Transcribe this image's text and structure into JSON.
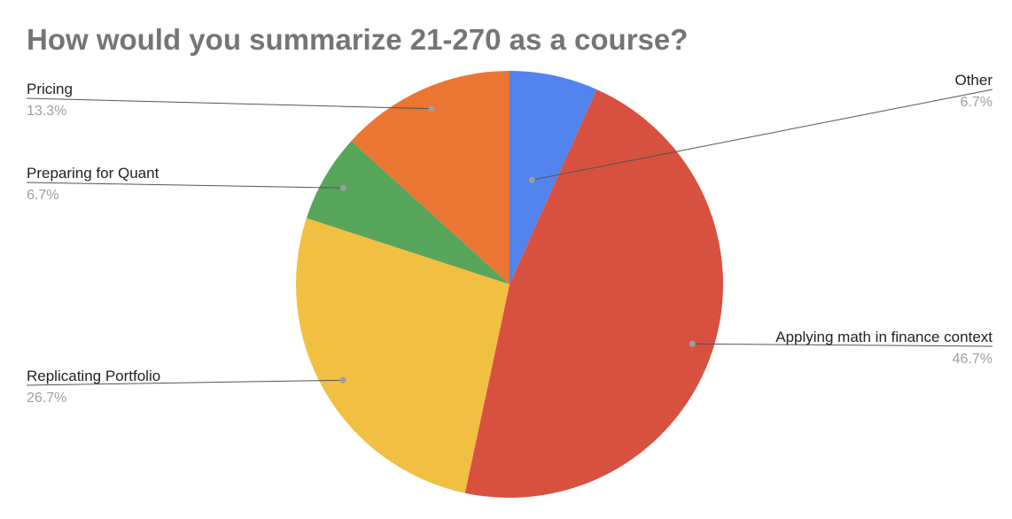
{
  "chart_data": {
    "type": "pie",
    "title": "How would you summarize 21-270 as a course?",
    "legend": "none",
    "slices": [
      {
        "label": "Other",
        "value": 6.7,
        "value_label": "6.7%",
        "color": "#5383ec"
      },
      {
        "label": "Applying math in finance context",
        "value": 46.7,
        "value_label": "46.7%",
        "color": "#d85140"
      },
      {
        "label": "Replicating Portfolio",
        "value": 26.7,
        "value_label": "26.7%",
        "color": "#f1bf42"
      },
      {
        "label": "Preparing for Quant",
        "value": 6.7,
        "value_label": "6.7%",
        "color": "#58a55c"
      },
      {
        "label": "Pricing",
        "value": 13.3,
        "value_label": "13.3%",
        "color": "#eb7532"
      }
    ]
  }
}
